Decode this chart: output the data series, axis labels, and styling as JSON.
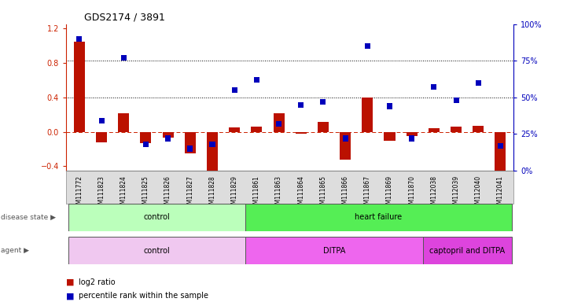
{
  "title": "GDS2174 / 3891",
  "samples": [
    "GSM111772",
    "GSM111823",
    "GSM111824",
    "GSM111825",
    "GSM111826",
    "GSM111827",
    "GSM111828",
    "GSM111829",
    "GSM111861",
    "GSM111863",
    "GSM111864",
    "GSM111865",
    "GSM111866",
    "GSM111867",
    "GSM111869",
    "GSM111870",
    "GSM112038",
    "GSM112039",
    "GSM112040",
    "GSM112041"
  ],
  "log2_ratio": [
    1.05,
    -0.12,
    0.22,
    -0.13,
    -0.07,
    -0.25,
    -0.45,
    0.05,
    0.06,
    0.22,
    -0.02,
    0.12,
    -0.32,
    0.4,
    -0.1,
    -0.05,
    0.04,
    0.06,
    0.07,
    -0.52
  ],
  "percentile": [
    0.9,
    0.34,
    0.77,
    0.18,
    0.22,
    0.15,
    0.18,
    0.55,
    0.62,
    0.32,
    0.45,
    0.47,
    0.22,
    0.85,
    0.44,
    0.22,
    0.57,
    0.48,
    0.6,
    0.17
  ],
  "left_ylim": [
    -0.45,
    1.25
  ],
  "right_ylim": [
    0.0,
    1.0
  ],
  "left_yticks": [
    -0.4,
    0.0,
    0.4,
    0.8,
    1.2
  ],
  "right_yticks": [
    0.0,
    0.25,
    0.5,
    0.75,
    1.0
  ],
  "right_yticklabels": [
    "0%",
    "25%",
    "50%",
    "75%",
    "100%"
  ],
  "bar_color": "#bb1100",
  "dot_color": "#0000bb",
  "zero_line_color": "#cc2200",
  "hline_pcts": [
    0.5,
    0.75
  ],
  "disease_state_groups": [
    {
      "label": "control",
      "start": 0,
      "end": 8,
      "color": "#bbffbb"
    },
    {
      "label": "heart failure",
      "start": 8,
      "end": 20,
      "color": "#55ee55"
    }
  ],
  "agent_groups": [
    {
      "label": "control",
      "start": 0,
      "end": 8,
      "color": "#f0c8f0"
    },
    {
      "label": "DITPA",
      "start": 8,
      "end": 16,
      "color": "#ee66ee"
    },
    {
      "label": "captopril and DITPA",
      "start": 16,
      "end": 20,
      "color": "#dd44dd"
    }
  ],
  "bg_color": "#ffffff",
  "xtick_bg": "#dddddd"
}
